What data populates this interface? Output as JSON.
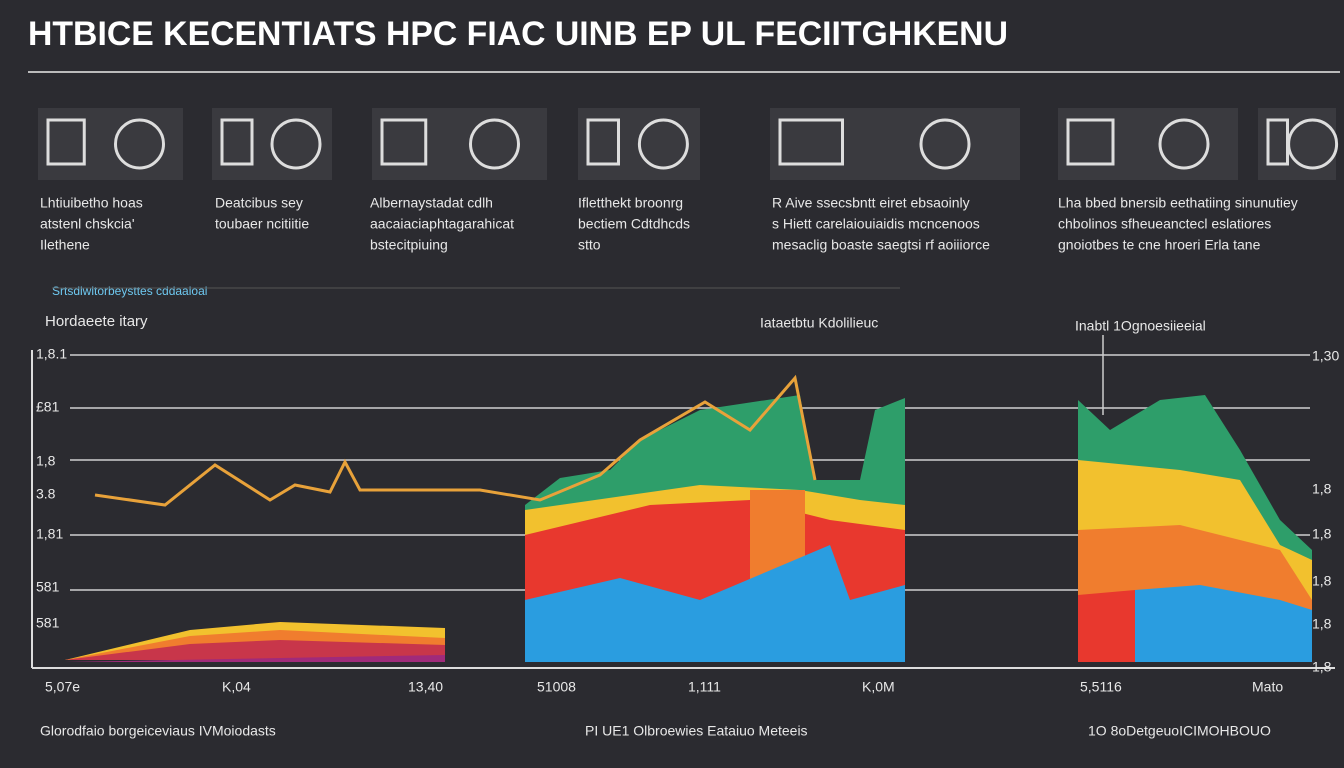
{
  "header": {
    "title": "HTBICE KECENTIATS HPC FIAC UINB EP UL FECIITGHKENU"
  },
  "panels": [
    {
      "lines": [
        "Lhtiuibetho hoas",
        "atstenl chskcia'",
        "Ilethene"
      ]
    },
    {
      "lines": [
        "Deatcibus sey",
        "toubaer ncitiitie"
      ]
    },
    {
      "lines": [
        "Albernaystadat cdlh",
        "aacaiaciaphtagarahicat",
        "bstecitpiuing"
      ]
    },
    {
      "lines": [
        "Ifletthekt broonrg",
        "bectiem Cdtdhcds",
        "stto"
      ]
    },
    {
      "lines": [
        "R Aive ssecsbntt eiret ebsaoinly",
        "s Hiett carelaiouiaidis mcncenoos",
        "mesaclig boaste saegtsi rf aoiiiorce"
      ]
    },
    {
      "lines": [
        "Lha bbed bnersib eethatiing sinunutiey",
        "chbolinos sfheueanctecl eslatiores",
        "gnoiotbes te cne hroeri Erla tane"
      ]
    }
  ],
  "subheading": "Srtsdiwitorbeysttes cddaaioal",
  "chart_labels": {
    "left": "Hordaeete itary",
    "center": "Iataetbtu Kdolilieuc",
    "right": "Inabtl 1Ognoesiieeial"
  },
  "y_labels_left": [
    "1,8.1",
    "£81",
    "1,8",
    "3.8",
    "1,81",
    "581",
    "581"
  ],
  "y_labels_right": [
    "1,30",
    "1,8",
    "1,8",
    "1,8",
    "1,8",
    "1,8"
  ],
  "x_labels": [
    "5,07e",
    "K,04",
    "13,40",
    "51008",
    "1,111",
    "K,0M",
    "5,5116",
    "Mato"
  ],
  "footer": [
    "Glorodfaio borgeiceviaus IVMoiodasts",
    "PI UE1 Olbroewies Eataiuo Meteeis",
    "1O 8oDetgeuoICIMOHBOUO"
  ]
}
